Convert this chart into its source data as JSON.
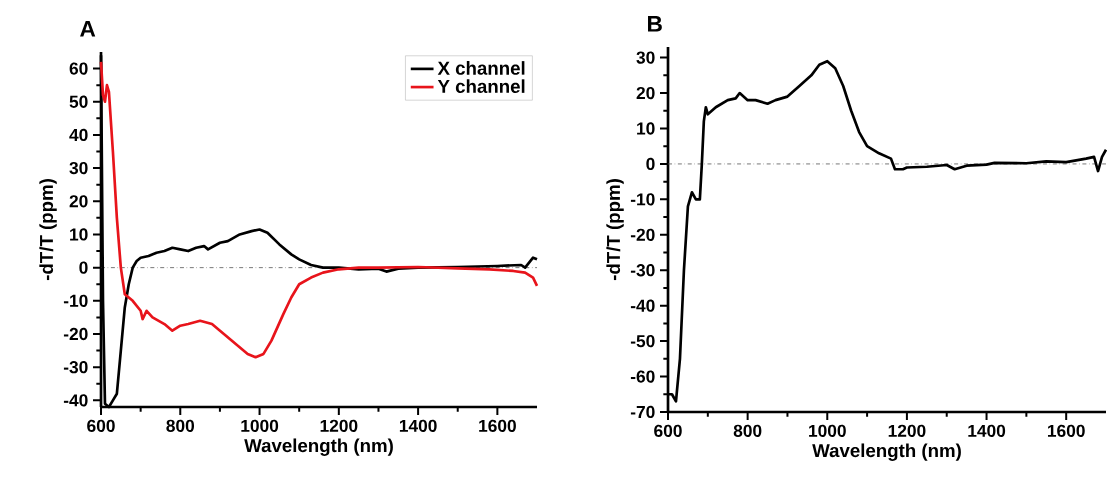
{
  "chart_data": [
    {
      "type": "line",
      "title": "A",
      "xlabel": "Wavelength (nm)",
      "ylabel": "-dT/T (ppm)",
      "xlim": [
        600,
        1700
      ],
      "ylim": [
        -42,
        65
      ],
      "xticks": [
        600,
        800,
        1000,
        1200,
        1400,
        1600
      ],
      "yticks": [
        -40,
        -30,
        -20,
        -10,
        0,
        10,
        20,
        30,
        40,
        50,
        60
      ],
      "legend": "top right",
      "grid": false,
      "ref_lines": [
        {
          "axis": "y",
          "value": 0,
          "color": "#555555",
          "line_style": "dashed"
        }
      ],
      "series": [
        {
          "name": "X channel",
          "color": "#000000",
          "x": [
            600,
            605,
            610,
            620,
            630,
            640,
            650,
            660,
            670,
            680,
            690,
            700,
            720,
            740,
            760,
            780,
            800,
            820,
            840,
            860,
            870,
            900,
            920,
            950,
            980,
            1000,
            1020,
            1050,
            1080,
            1100,
            1130,
            1160,
            1200,
            1250,
            1300,
            1320,
            1350,
            1400,
            1500,
            1600,
            1660,
            1670,
            1680,
            1690,
            1700
          ],
          "values": [
            64,
            -10,
            -41,
            -42,
            -40,
            -38,
            -25,
            -12,
            -5,
            0,
            2,
            3,
            3.5,
            4.5,
            5,
            6,
            5.5,
            5,
            6,
            6.5,
            5.5,
            7.5,
            8,
            10,
            11,
            11.5,
            10.5,
            7,
            4,
            2.5,
            0.8,
            0,
            0,
            -0.5,
            -0.3,
            -1.2,
            -0.3,
            0,
            0.2,
            0.5,
            0.8,
            0,
            1.5,
            3,
            2.5
          ]
        },
        {
          "name": "Y channel",
          "color": "#e8141b",
          "x": [
            600,
            605,
            610,
            615,
            620,
            630,
            640,
            650,
            660,
            680,
            700,
            705,
            715,
            730,
            760,
            780,
            800,
            820,
            850,
            880,
            910,
            940,
            970,
            990,
            1010,
            1030,
            1060,
            1080,
            1100,
            1130,
            1160,
            1200,
            1250,
            1300,
            1400,
            1500,
            1580,
            1640,
            1670,
            1690,
            1700
          ],
          "values": [
            62,
            52,
            50,
            55,
            53,
            35,
            15,
            0,
            -8,
            -10,
            -13,
            -15.5,
            -13,
            -15,
            -17,
            -19,
            -17.5,
            -17,
            -16,
            -17,
            -20,
            -23,
            -26,
            -27,
            -26,
            -22,
            -14,
            -9,
            -5,
            -3,
            -1.5,
            -0.5,
            0,
            0,
            0.2,
            -0.2,
            -0.5,
            -1,
            -1.5,
            -3,
            -5.5
          ]
        }
      ]
    },
    {
      "type": "line",
      "title": "B",
      "xlabel": "Wavelength (nm)",
      "ylabel": "-dT/T (ppm)",
      "xlim": [
        600,
        1700
      ],
      "ylim": [
        -70,
        33
      ],
      "xticks": [
        600,
        800,
        1000,
        1200,
        1400,
        1600
      ],
      "yticks": [
        -70,
        -60,
        -50,
        -40,
        -30,
        -20,
        -10,
        0,
        10,
        20,
        30
      ],
      "grid": false,
      "ref_lines": [
        {
          "axis": "y",
          "value": 0,
          "color": "#555555",
          "line_style": "dashed"
        }
      ],
      "series": [
        {
          "color": "#000000",
          "x": [
            600,
            610,
            620,
            630,
            640,
            650,
            660,
            670,
            680,
            685,
            690,
            695,
            700,
            720,
            750,
            770,
            780,
            800,
            820,
            850,
            870,
            900,
            930,
            960,
            980,
            1000,
            1020,
            1040,
            1060,
            1080,
            1100,
            1130,
            1160,
            1170,
            1190,
            1200,
            1250,
            1300,
            1320,
            1350,
            1400,
            1420,
            1500,
            1550,
            1600,
            1650,
            1670,
            1680,
            1690,
            1700
          ],
          "values": [
            -65,
            -65,
            -67,
            -55,
            -30,
            -12,
            -8,
            -10,
            -10,
            0,
            12,
            16,
            14,
            16,
            18,
            18.5,
            20,
            18,
            18,
            17,
            18,
            19,
            22,
            25,
            28,
            29,
            27,
            22,
            15,
            9,
            5,
            3,
            1.5,
            -1.5,
            -1.5,
            -1,
            -0.8,
            -0.3,
            -1.5,
            -0.5,
            -0.2,
            0.3,
            0.2,
            0.7,
            0.5,
            1.5,
            2,
            -2,
            2,
            4
          ]
        }
      ]
    }
  ]
}
